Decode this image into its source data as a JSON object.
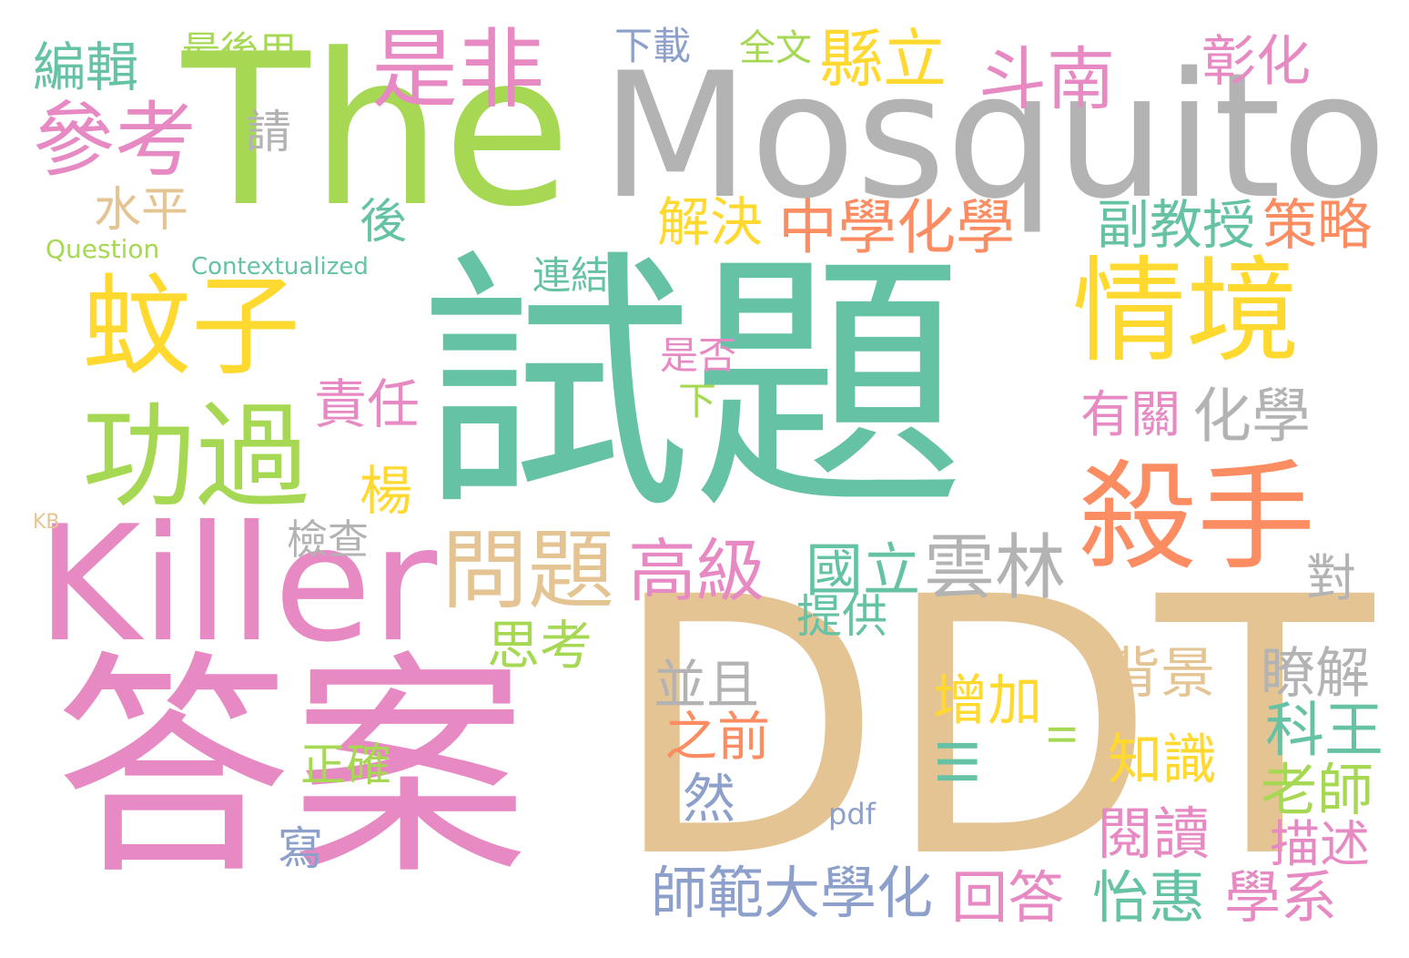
{
  "colors": {
    "background": "#ffffff",
    "teal": "#66c2a5",
    "orange": "#fc8d62",
    "blue": "#8da0cb",
    "pink": "#e78ac3",
    "green": "#a6d854",
    "yellow": "#ffd92f",
    "tan": "#e5c494",
    "gray": "#b3b3b3"
  },
  "words": [
    {
      "text": "試題",
      "color": "#66c2a5"
    },
    {
      "text": "答案",
      "color": "#e78ac3"
    },
    {
      "text": "DDT",
      "color": "#e5c494"
    },
    {
      "text": "The",
      "color": "#a6d854"
    },
    {
      "text": "Mosquito",
      "color": "#b3b3b3"
    },
    {
      "text": "Killer",
      "color": "#e78ac3"
    },
    {
      "text": "蚊子",
      "color": "#ffd92f"
    },
    {
      "text": "功過",
      "color": "#a6d854"
    },
    {
      "text": "情境",
      "color": "#ffd92f"
    },
    {
      "text": "殺手",
      "color": "#fc8d62"
    },
    {
      "text": "是非",
      "color": "#e78ac3"
    },
    {
      "text": "參考",
      "color": "#e78ac3"
    },
    {
      "text": "問題",
      "color": "#e5c494"
    },
    {
      "text": "縣立",
      "color": "#ffd92f"
    },
    {
      "text": "斗南",
      "color": "#e78ac3"
    },
    {
      "text": "彰化",
      "color": "#e78ac3"
    },
    {
      "text": "編輯",
      "color": "#66c2a5"
    },
    {
      "text": "最後用",
      "color": "#a6d854"
    },
    {
      "text": "下載",
      "color": "#8da0cb"
    },
    {
      "text": "全文",
      "color": "#a6d854"
    },
    {
      "text": "請",
      "color": "#b3b3b3"
    },
    {
      "text": "水平",
      "color": "#e5c494"
    },
    {
      "text": "Question",
      "color": "#a6d854"
    },
    {
      "text": "Contextualized",
      "color": "#66c2a5"
    },
    {
      "text": "後",
      "color": "#66c2a5"
    },
    {
      "text": "解決",
      "color": "#ffd92f"
    },
    {
      "text": "中學化學",
      "color": "#fc8d62"
    },
    {
      "text": "副教授",
      "color": "#66c2a5"
    },
    {
      "text": "策略",
      "color": "#fc8d62"
    },
    {
      "text": "連結",
      "color": "#66c2a5"
    },
    {
      "text": "是否",
      "color": "#e78ac3"
    },
    {
      "text": "責任",
      "color": "#e78ac3"
    },
    {
      "text": "下",
      "color": "#a6d854"
    },
    {
      "text": "有關",
      "color": "#e78ac3"
    },
    {
      "text": "化學",
      "color": "#b3b3b3"
    },
    {
      "text": "楊",
      "color": "#ffd92f"
    },
    {
      "text": "KB",
      "color": "#e5c494"
    },
    {
      "text": "檢查",
      "color": "#b3b3b3"
    },
    {
      "text": "高級",
      "color": "#e78ac3"
    },
    {
      "text": "國立",
      "color": "#66c2a5"
    },
    {
      "text": "雲林",
      "color": "#b3b3b3"
    },
    {
      "text": "對",
      "color": "#b3b3b3"
    },
    {
      "text": "提供",
      "color": "#66c2a5"
    },
    {
      "text": "思考",
      "color": "#a6d854"
    },
    {
      "text": "背景",
      "color": "#e5c494"
    },
    {
      "text": "瞭解",
      "color": "#b3b3b3"
    },
    {
      "text": "並且",
      "color": "#b3b3b3"
    },
    {
      "text": "增加",
      "color": "#ffd92f"
    },
    {
      "text": "之前",
      "color": "#fc8d62"
    },
    {
      "text": "科王",
      "color": "#66c2a5"
    },
    {
      "text": "II",
      "color": "#a6d854"
    },
    {
      "text": "正確",
      "color": "#a6d854"
    },
    {
      "text": "III",
      "color": "#66c2a5"
    },
    {
      "text": "知識",
      "color": "#ffd92f"
    },
    {
      "text": "老師",
      "color": "#a6d854"
    },
    {
      "text": "然",
      "color": "#8da0cb"
    },
    {
      "text": "pdf",
      "color": "#8da0cb"
    },
    {
      "text": "閱讀",
      "color": "#e78ac3"
    },
    {
      "text": "描述",
      "color": "#e78ac3"
    },
    {
      "text": "寫",
      "color": "#8da0cb"
    },
    {
      "text": "師範大學化",
      "color": "#8da0cb"
    },
    {
      "text": "回答",
      "color": "#e78ac3"
    },
    {
      "text": "怡惠",
      "color": "#66c2a5"
    },
    {
      "text": "學系",
      "color": "#e78ac3"
    }
  ]
}
